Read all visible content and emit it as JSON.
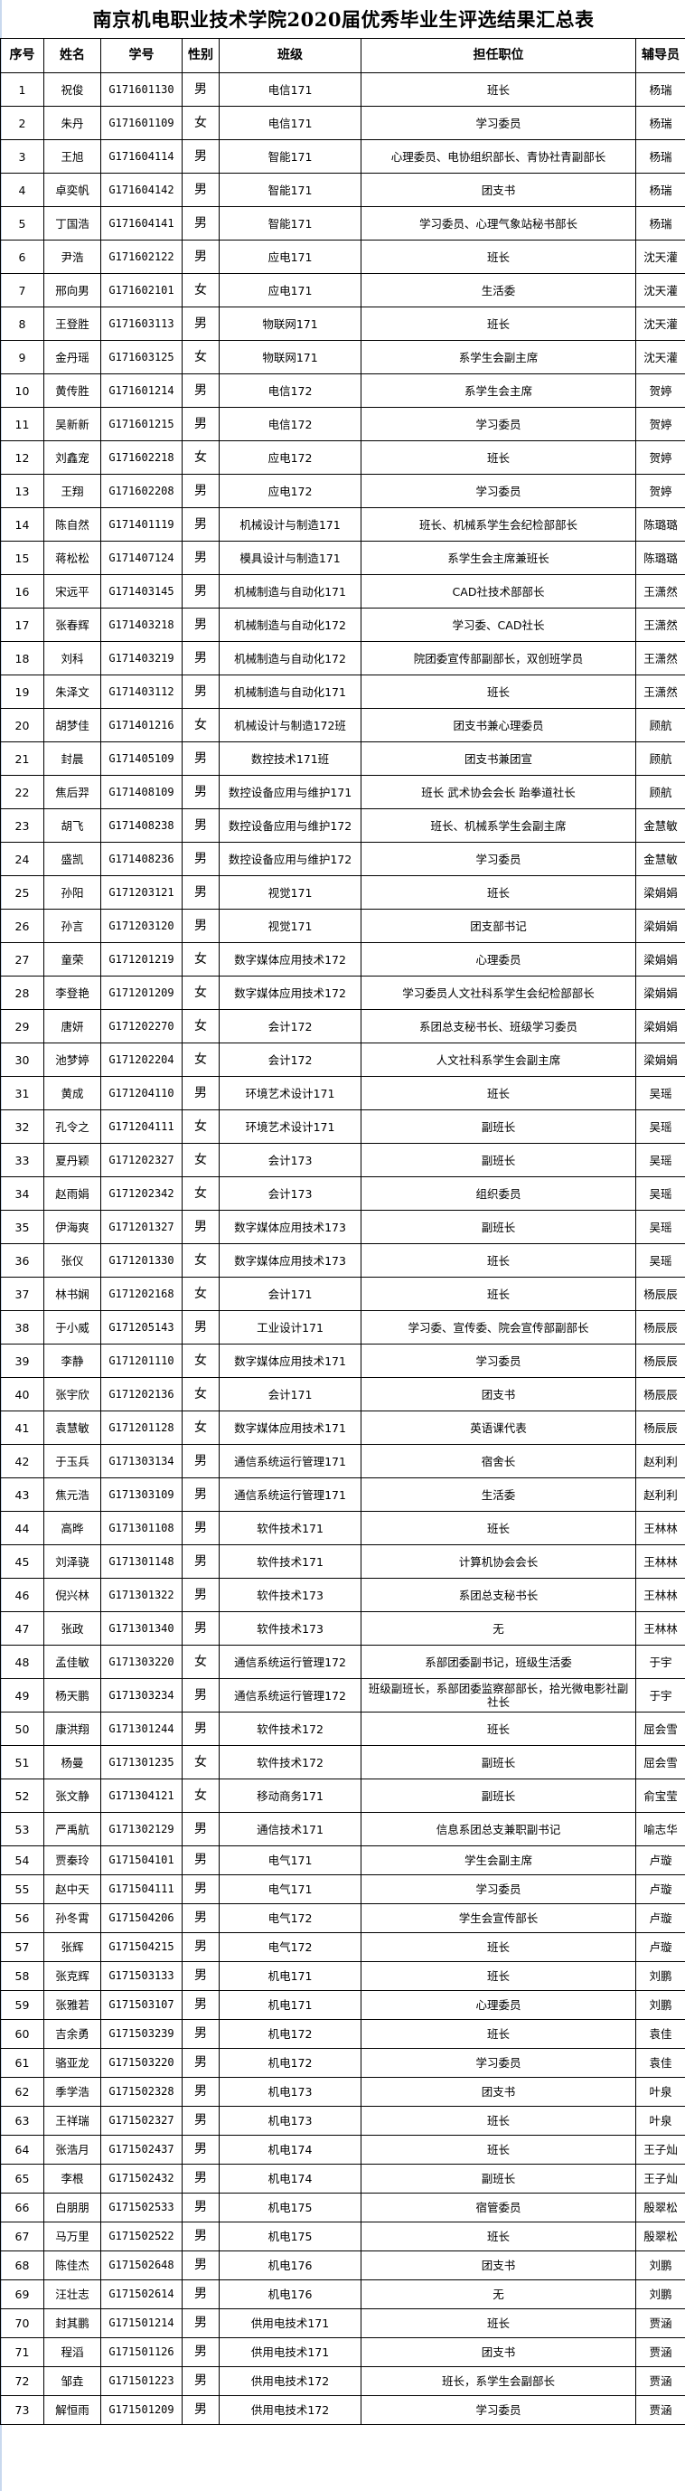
{
  "title": "南京机电职业技术学院2020届优秀毕业生评选结果汇总表",
  "columns": [
    "序号",
    "姓名",
    "学号",
    "性别",
    "班级",
    "担任职位",
    "辅导员"
  ],
  "rows": [
    [
      "1",
      "祝俊",
      "G171601130",
      "男",
      "电信171",
      "班长",
      "杨瑞"
    ],
    [
      "2",
      "朱丹",
      "G171601109",
      "女",
      "电信171",
      "学习委员",
      "杨瑞"
    ],
    [
      "3",
      "王旭",
      "G171604114",
      "男",
      "智能171",
      "心理委员、电协组织部长、青协社青副部长",
      "杨瑞"
    ],
    [
      "4",
      "卓奕帆",
      "G171604142",
      "男",
      "智能171",
      "团支书",
      "杨瑞"
    ],
    [
      "5",
      "丁国浩",
      "G171604141",
      "男",
      "智能171",
      "学习委员、心理气象站秘书部长",
      "杨瑞"
    ],
    [
      "6",
      "尹浩",
      "G171602122",
      "男",
      "应电171",
      "班长",
      "沈天灌"
    ],
    [
      "7",
      "邢向男",
      "G171602101",
      "女",
      "应电171",
      "生活委",
      "沈天灌"
    ],
    [
      "8",
      "王登胜",
      "G171603113",
      "男",
      "物联网171",
      "班长",
      "沈天灌"
    ],
    [
      "9",
      "金丹瑶",
      "G171603125",
      "女",
      "物联网171",
      "系学生会副主席",
      "沈天灌"
    ],
    [
      "10",
      "黄传胜",
      "G171601214",
      "男",
      "电信172",
      "系学生会主席",
      "贺婷"
    ],
    [
      "11",
      "吴新新",
      "G171601215",
      "男",
      "电信172",
      "学习委员",
      "贺婷"
    ],
    [
      "12",
      "刘鑫宠",
      "G171602218",
      "女",
      "应电172",
      "班长",
      "贺婷"
    ],
    [
      "13",
      "王翔",
      "G171602208",
      "男",
      "应电172",
      "学习委员",
      "贺婷"
    ],
    [
      "14",
      "陈自然",
      "G171401119",
      "男",
      "机械设计与制造171",
      "班长、机械系学生会纪检部部长",
      "陈璐璐"
    ],
    [
      "15",
      "蒋松松",
      "G171407124",
      "男",
      "模具设计与制造171",
      "系学生会主席兼班长",
      "陈璐璐"
    ],
    [
      "16",
      "宋远平",
      "G171403145",
      "男",
      "机械制造与自动化171",
      "CAD社技术部部长",
      "王潇然"
    ],
    [
      "17",
      "张春辉",
      "G171403218",
      "男",
      "机械制造与自动化172",
      "学习委、CAD社长",
      "王潇然"
    ],
    [
      "18",
      "刘科",
      "G171403219",
      "男",
      "机械制造与自动化172",
      "院团委宣传部副部长，双创班学员",
      "王潇然"
    ],
    [
      "19",
      "朱泽文",
      "G171403112",
      "男",
      "机械制造与自动化171",
      "班长",
      "王潇然"
    ],
    [
      "20",
      "胡梦佳",
      "G171401216",
      "女",
      "机械设计与制造172班",
      "团支书兼心理委员",
      "顾航"
    ],
    [
      "21",
      "封晨",
      "G171405109",
      "男",
      "数控技术171班",
      "团支书兼团宣",
      "顾航"
    ],
    [
      "22",
      "焦后羿",
      "G171408109",
      "男",
      "数控设备应用与维护171",
      "班长 武术协会会长 跆拳道社长",
      "顾航"
    ],
    [
      "23",
      "胡飞",
      "G171408238",
      "男",
      "数控设备应用与维护172",
      "班长、机械系学生会副主席",
      "金慧敏"
    ],
    [
      "24",
      "盛凯",
      "G171408236",
      "男",
      "数控设备应用与维护172",
      "学习委员",
      "金慧敏"
    ],
    [
      "25",
      "孙阳",
      "G171203121",
      "男",
      "视觉171",
      "班长",
      "梁娟娟"
    ],
    [
      "26",
      "孙言",
      "G171203120",
      "男",
      "视觉171",
      "团支部书记",
      "梁娟娟"
    ],
    [
      "27",
      "童荣",
      "G171201219",
      "女",
      "数字媒体应用技术172",
      "心理委员",
      "梁娟娟"
    ],
    [
      "28",
      "李登艳",
      "G171201209",
      "女",
      "数字媒体应用技术172",
      "学习委员人文社科系学生会纪检部部长",
      "梁娟娟"
    ],
    [
      "29",
      "唐妍",
      "G171202270",
      "女",
      "会计172",
      "系团总支秘书长、班级学习委员",
      "梁娟娟"
    ],
    [
      "30",
      "池梦婷",
      "G171202204",
      "女",
      "会计172",
      "人文社科系学生会副主席",
      "梁娟娟"
    ],
    [
      "31",
      "黄成",
      "G171204110",
      "男",
      "环境艺术设计171",
      "班长",
      "吴瑶"
    ],
    [
      "32",
      "孔令之",
      "G171204111",
      "女",
      "环境艺术设计171",
      "副班长",
      "吴瑶"
    ],
    [
      "33",
      "夏丹颖",
      "G171202327",
      "女",
      "会计173",
      "副班长",
      "吴瑶"
    ],
    [
      "34",
      "赵雨娟",
      "G171202342",
      "女",
      "会计173",
      "组织委员",
      "吴瑶"
    ],
    [
      "35",
      "伊海爽",
      "G171201327",
      "男",
      "数字媒体应用技术173",
      "副班长",
      "吴瑶"
    ],
    [
      "36",
      "张仪",
      "G171201330",
      "女",
      "数字媒体应用技术173",
      "班长",
      "吴瑶"
    ],
    [
      "37",
      "林书娴",
      "G171202168",
      "女",
      "会计171",
      "班长",
      "杨辰辰"
    ],
    [
      "38",
      "于小威",
      "G171205143",
      "男",
      "工业设计171",
      "学习委、宣传委、院会宣传部副部长",
      "杨辰辰"
    ],
    [
      "39",
      "李静",
      "G171201110",
      "女",
      "数字媒体应用技术171",
      "学习委员",
      "杨辰辰"
    ],
    [
      "40",
      "张宇欣",
      "G171202136",
      "女",
      "会计171",
      "团支书",
      "杨辰辰"
    ],
    [
      "41",
      "袁慧敏",
      "G171201128",
      "女",
      "数字媒体应用技术171",
      "英语课代表",
      "杨辰辰"
    ],
    [
      "42",
      "于玉兵",
      "G171303134",
      "男",
      "通信系统运行管理171",
      "宿舍长",
      "赵利利"
    ],
    [
      "43",
      "焦元浩",
      "G171303109",
      "男",
      "通信系统运行管理171",
      "生活委",
      "赵利利"
    ],
    [
      "44",
      "高晔",
      "G171301108",
      "男",
      "软件技术171",
      "班长",
      "王林林"
    ],
    [
      "45",
      "刘泽骁",
      "G171301148",
      "男",
      "软件技术171",
      "计算机协会会长",
      "王林林"
    ],
    [
      "46",
      "倪兴林",
      "G171301322",
      "男",
      "软件技术173",
      "系团总支秘书长",
      "王林林"
    ],
    [
      "47",
      "张政",
      "G171301340",
      "男",
      "软件技术173",
      "无",
      "王林林"
    ],
    [
      "48",
      "孟佳敏",
      "G171303220",
      "女",
      "通信系统运行管理172",
      "系部团委副书记，班级生活委",
      "于宇"
    ],
    [
      "49",
      "杨天鹏",
      "G171303234",
      "男",
      "通信系统运行管理172",
      "班级副班长，系部团委监察部部长，拾光微电影社副社长",
      "于宇"
    ],
    [
      "50",
      "康洪翔",
      "G171301244",
      "男",
      "软件技术172",
      "班长",
      "屈会雪"
    ],
    [
      "51",
      "杨曼",
      "G171301235",
      "女",
      "软件技术172",
      "副班长",
      "屈会雪"
    ],
    [
      "52",
      "张文静",
      "G171304121",
      "女",
      "移动商务171",
      "副班长",
      "俞宝莹"
    ],
    [
      "53",
      "严禹航",
      "G171302129",
      "男",
      "通信技术171",
      "信息系团总支兼职副书记",
      "喻志华"
    ],
    [
      "54",
      "贾秦玲",
      "G171504101",
      "男",
      "电气171",
      "学生会副主席",
      "卢璇"
    ],
    [
      "55",
      "赵中天",
      "G171504111",
      "男",
      "电气171",
      "学习委员",
      "卢璇"
    ],
    [
      "56",
      "孙冬霄",
      "G171504206",
      "男",
      "电气172",
      "学生会宣传部长",
      "卢璇"
    ],
    [
      "57",
      "张辉",
      "G171504215",
      "男",
      "电气172",
      "班长",
      "卢璇"
    ],
    [
      "58",
      "张克辉",
      "G171503133",
      "男",
      "机电171",
      "班长",
      "刘鹏"
    ],
    [
      "59",
      "张雅若",
      "G171503107",
      "男",
      "机电171",
      "心理委员",
      "刘鹏"
    ],
    [
      "60",
      "吉余勇",
      "G171503239",
      "男",
      "机电172",
      "班长",
      "袁佳"
    ],
    [
      "61",
      "骆亚龙",
      "G171503220",
      "男",
      "机电172",
      "学习委员",
      "袁佳"
    ],
    [
      "62",
      "季学浩",
      "G171502328",
      "男",
      "机电173",
      "团支书",
      "叶泉"
    ],
    [
      "63",
      "王祥瑞",
      "G171502327",
      "男",
      "机电173",
      "班长",
      "叶泉"
    ],
    [
      "64",
      "张浩月",
      "G171502437",
      "男",
      "机电174",
      "班长",
      "王子灿"
    ],
    [
      "65",
      "李根",
      "G171502432",
      "男",
      "机电174",
      "副班长",
      "王子灿"
    ],
    [
      "66",
      "白朋朋",
      "G171502533",
      "男",
      "机电175",
      "宿管委员",
      "殷翠松"
    ],
    [
      "67",
      "马万里",
      "G171502522",
      "男",
      "机电175",
      "班长",
      "殷翠松"
    ],
    [
      "68",
      "陈佳杰",
      "G171502648",
      "男",
      "机电176",
      "团支书",
      "刘鹏"
    ],
    [
      "69",
      "汪壮志",
      "G171502614",
      "男",
      "机电176",
      "无",
      "刘鹏"
    ],
    [
      "70",
      "封其鹏",
      "G171501214",
      "男",
      "供用电技术171",
      "班长",
      "贾涵"
    ],
    [
      "71",
      "程滔",
      "G171501126",
      "男",
      "供用电技术171",
      "团支书",
      "贾涵"
    ],
    [
      "72",
      "邹垚",
      "G171501223",
      "男",
      "供用电技术172",
      "班长，系学生会副部长",
      "贾涵"
    ],
    [
      "73",
      "解恒雨",
      "G171501209",
      "男",
      "供用电技术172",
      "学习委员",
      "贾涵"
    ]
  ]
}
